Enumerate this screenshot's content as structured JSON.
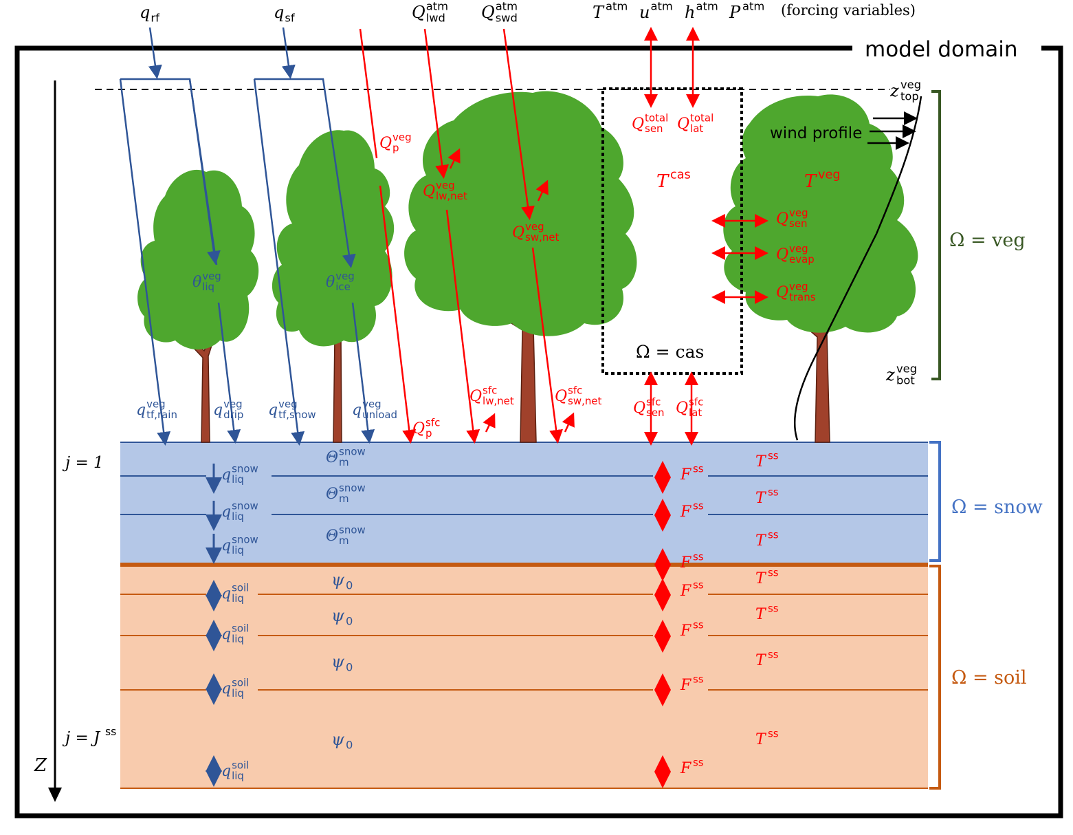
{
  "header": {
    "forcing_note": "(forcing variables)",
    "model_domain": "model domain"
  },
  "forcing": {
    "q_rf": {
      "base": "q",
      "sub": "rf"
    },
    "q_sf": {
      "base": "q",
      "sub": "sf"
    },
    "Q_lwd": {
      "base": "Q",
      "sub": "lwd",
      "sup": "atm"
    },
    "Q_swd": {
      "base": "Q",
      "sub": "swd",
      "sup": "atm"
    },
    "T_atm": {
      "base": "T",
      "sup": "atm"
    },
    "u_atm": {
      "base": "u",
      "sup": "atm"
    },
    "h_atm": {
      "base": "h",
      "sup": "atm"
    },
    "P_atm": {
      "base": "P",
      "sup": "atm"
    }
  },
  "canopy": {
    "Q_sen_total": {
      "base": "Q",
      "sub": "sen",
      "sup": "total"
    },
    "Q_lat_total": {
      "base": "Q",
      "sub": "lat",
      "sup": "total"
    },
    "T_cas": {
      "base": "T",
      "sup": "cas"
    },
    "omega_cas": "Ω = cas",
    "T_veg": {
      "base": "T",
      "sup": "veg"
    },
    "wind_profile": "wind profile",
    "z_top": {
      "base": "z",
      "sub": "top",
      "sup": "veg"
    },
    "z_bot": {
      "base": "z",
      "sub": "bot",
      "sup": "veg"
    },
    "Q_p_veg": {
      "base": "Q",
      "sub": "p",
      "sup": "veg"
    },
    "Q_lw_net_veg": {
      "base": "Q",
      "sub": "lw,net",
      "sup": "veg"
    },
    "Q_sw_net_veg": {
      "base": "Q",
      "sub": "sw,net",
      "sup": "veg"
    },
    "Q_sen_veg": {
      "base": "Q",
      "sub": "sen",
      "sup": "veg"
    },
    "Q_evap_veg": {
      "base": "Q",
      "sub": "evap",
      "sup": "veg"
    },
    "Q_trans_veg": {
      "base": "Q",
      "sub": "trans",
      "sup": "veg"
    },
    "theta_liq": {
      "base": "θ",
      "sub": "liq",
      "sup": "veg"
    },
    "theta_ice": {
      "base": "θ",
      "sub": "ice",
      "sup": "veg"
    }
  },
  "surface": {
    "q_tf_rain": {
      "base": "q",
      "sub": "tf,rain",
      "sup": "veg"
    },
    "q_drip": {
      "base": "q",
      "sub": "drip",
      "sup": "veg"
    },
    "q_tf_snow": {
      "base": "q",
      "sub": "tf,snow",
      "sup": "veg"
    },
    "q_unload": {
      "base": "q",
      "sub": "unload",
      "sup": "veg"
    },
    "Q_p_sfc": {
      "base": "Q",
      "sub": "p",
      "sup": "sfc"
    },
    "Q_lw_net_sfc": {
      "base": "Q",
      "sub": "lw,net",
      "sup": "sfc"
    },
    "Q_sw_net_sfc": {
      "base": "Q",
      "sub": "sw,net",
      "sup": "sfc"
    },
    "Q_sen_sfc": {
      "base": "Q",
      "sub": "sen",
      "sup": "sfc"
    },
    "Q_lat_sfc": {
      "base": "Q",
      "sub": "lat",
      "sup": "sfc"
    }
  },
  "subsurface": {
    "j1": "j = 1",
    "jJ": {
      "base": "j = J",
      "sup": "ss"
    },
    "z_axis": "Z",
    "q_liq_snow": {
      "base": "q",
      "sub": "liq",
      "sup": "snow"
    },
    "Theta_snow": {
      "base": "Θ",
      "sub": "m",
      "sup": "snow"
    },
    "F_ss": {
      "base": "F",
      "sup": "ss"
    },
    "T_ss": {
      "base": "T",
      "sup": "ss"
    },
    "q_liq_soil": {
      "base": "q",
      "sub": "liq",
      "sup": "soil"
    },
    "psi0": {
      "base": "ψ",
      "sub": "0"
    }
  },
  "domains": {
    "veg": "Ω = veg",
    "snow": "Ω = snow",
    "soil": "Ω = soil"
  },
  "colors": {
    "blue": "#2f5597",
    "red": "#ff0000",
    "leaf": "#4ea72e",
    "trunk": "#a0412b",
    "snow_fill": "#b4c7e7",
    "snow_line": "#2f5597",
    "soil_fill": "#f8cbad",
    "soil_line": "#c55a11",
    "veg_bracket": "#385723",
    "snow_bracket": "#4472c4",
    "soil_bracket": "#c55a11"
  }
}
